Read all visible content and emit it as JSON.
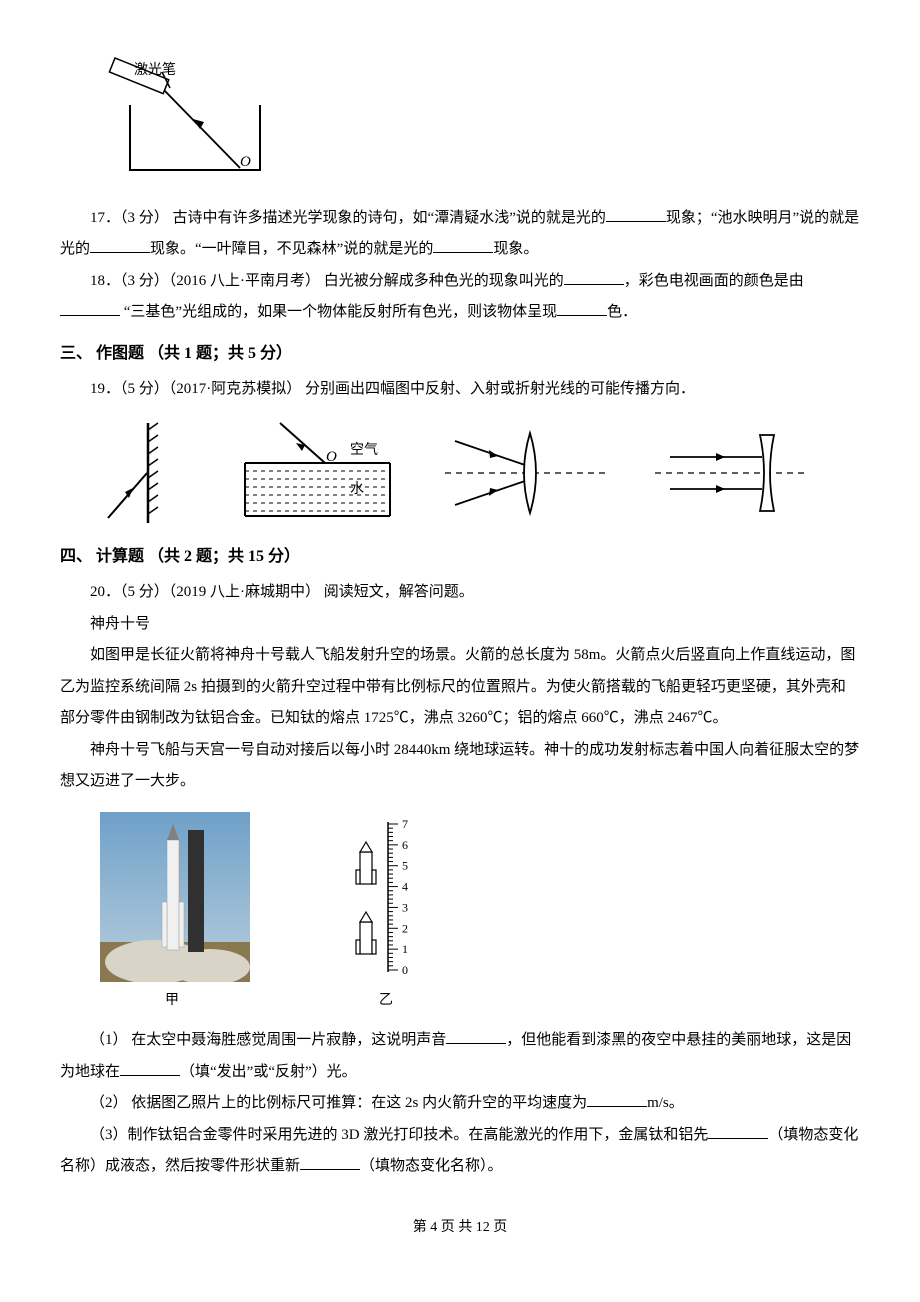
{
  "top_figure": {
    "label": "激光笔",
    "label_fontsize": 14,
    "stroke": "#000000",
    "stroke_width": 2
  },
  "q17": {
    "num": "17．",
    "pts": "（3 分）",
    "text_a": " 古诗中有许多描述光学现象的诗句，如“潭清疑水浅”说的就是光的",
    "text_b": "现象；“池水映明月”说的就是光的",
    "text_c": "现象。“一叶障目，不见森林”说的就是光的",
    "text_d": "现象。"
  },
  "q18": {
    "num": "18．",
    "pts": "（3 分）",
    "source": "（2016 八上·平南月考）",
    "text_a": " 白光被分解成多种色光的现象叫光的",
    "text_b": "，彩色电视画面的颜色是由",
    "text_c": " “三基色”光组成的，如果一个物体能反射所有色光，则该物体呈现",
    "text_d": "色．"
  },
  "section3": {
    "title": "三、 作图题 （共 1 题；共 5 分）"
  },
  "q19": {
    "num": "19．",
    "pts": "（5 分）",
    "source": "（2017·阿克苏模拟）",
    "text": " 分别画出四幅图中反射、入射或折射光线的可能传播方向．",
    "fig2_labels": {
      "air": "空气",
      "water": "水",
      "o": "O"
    },
    "stroke": "#000000"
  },
  "section4": {
    "title": "四、 计算题 （共 2 题；共 15 分）"
  },
  "q20": {
    "num": "20．",
    "pts": "（5 分）",
    "source": "（2019 八上·麻城期中）",
    "lead": " 阅读短文，解答问题。",
    "title": "神舟十号",
    "p1": "如图甲是长征火箭将神舟十号载人飞船发射升空的场景。火箭的总长度为 58m。火箭点火后竖直向上作直线运动，图乙为监控系统间隔 2s 拍摄到的火箭升空过程中带有比例标尺的位置照片。为使火箭搭载的飞船更轻巧更坚硬，其外壳和部分零件由钢制改为钛铝合金。已知钛的熔点 1725℃，沸点 3260℃；铝的熔点 660℃，沸点 2467℃。",
    "p2": "神舟十号飞船与天宫一号自动对接后以每小时 28440km 绕地球运转。神十的成功发射标志着中国人向着征服太空的梦想又迈进了一大步。",
    "caption_a": "甲",
    "caption_b": "乙",
    "scale_ticks": [
      "7",
      "6",
      "5",
      "4",
      "3",
      "2",
      "1",
      "0"
    ],
    "sub1_a": "（1） 在太空中聂海胜感觉周围一片寂静，这说明声音",
    "sub1_b": "，但他能看到漆黑的夜空中悬挂的美丽地球，这是因为地球在",
    "sub1_c": "（填“发出”或“反射”）光。",
    "sub2_a": "（2） 依据图乙照片上的比例标尺可推算：在这 2s 内火箭升空的平均速度为",
    "sub2_b": "m/s。",
    "sub3_a": "（3）制作钛铝合金零件时采用先进的 3D 激光打印技术。在高能激光的作用下，金属钛和铝先",
    "sub3_b": "（填物态变化名称）成液态，然后按零件形状重新",
    "sub3_c": "（填物态变化名称）。",
    "rocket_photo": {
      "sky_top": "#6fa0c8",
      "sky_mid": "#a8c4d8",
      "ground": "#8a7850",
      "smoke": "#d8d4c8",
      "tower": "#303030",
      "rocket_body": "#f0f0f0",
      "rocket_tip": "#808080"
    }
  },
  "footer": {
    "text_a": "第 ",
    "page": "4",
    "text_b": " 页 共 ",
    "total": "12",
    "text_c": " 页"
  }
}
